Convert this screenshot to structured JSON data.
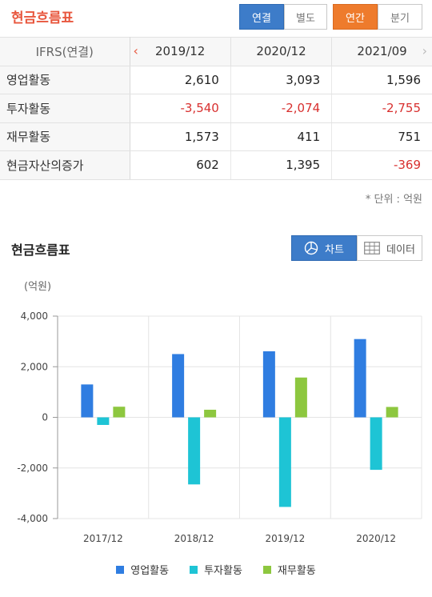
{
  "header": {
    "title": "현금흐름표",
    "buttons": [
      "연결",
      "별도",
      "연간",
      "분기"
    ]
  },
  "table": {
    "corner": "IFRS(연결)",
    "columns": [
      "2019/12",
      "2020/12",
      "2021/09"
    ],
    "rows": [
      {
        "label": "영업활동",
        "values": [
          "2,610",
          "3,093",
          "1,596"
        ]
      },
      {
        "label": "투자활동",
        "values": [
          "-3,540",
          "-2,074",
          "-2,755"
        ]
      },
      {
        "label": "재무활동",
        "values": [
          "1,573",
          "411",
          "751"
        ]
      },
      {
        "label": "현금자산의증가",
        "values": [
          "602",
          "1,395",
          "-369"
        ]
      }
    ],
    "left_arrow": "‹",
    "right_arrow": "›",
    "unit_note": "* 단위 : 억원"
  },
  "chart_section": {
    "title": "현금흐름표",
    "toggle_chart": "차트",
    "toggle_data": "데이터",
    "y_unit": "(억원)"
  },
  "colors": {
    "영업활동": "#2f7de1",
    "투자활동": "#1ec4d5",
    "재무활동": "#8dc73f",
    "accent_title": "#e8573e",
    "negative": "#d8302f"
  },
  "chart_data": {
    "type": "bar",
    "categories": [
      "2017/12",
      "2018/12",
      "2019/12",
      "2020/12"
    ],
    "series": [
      {
        "name": "영업활동",
        "values": [
          1300,
          2500,
          2610,
          3093
        ]
      },
      {
        "name": "투자활동",
        "values": [
          -300,
          -2650,
          -3540,
          -2074
        ]
      },
      {
        "name": "재무활동",
        "values": [
          420,
          300,
          1573,
          411
        ]
      }
    ],
    "yticks": [
      "4,000",
      "2,000",
      "0",
      "-2,000",
      "-4,000"
    ],
    "ylim": [
      -4000,
      4000
    ],
    "ylabel": "(억원)",
    "legend": "bottom",
    "grid": true
  }
}
